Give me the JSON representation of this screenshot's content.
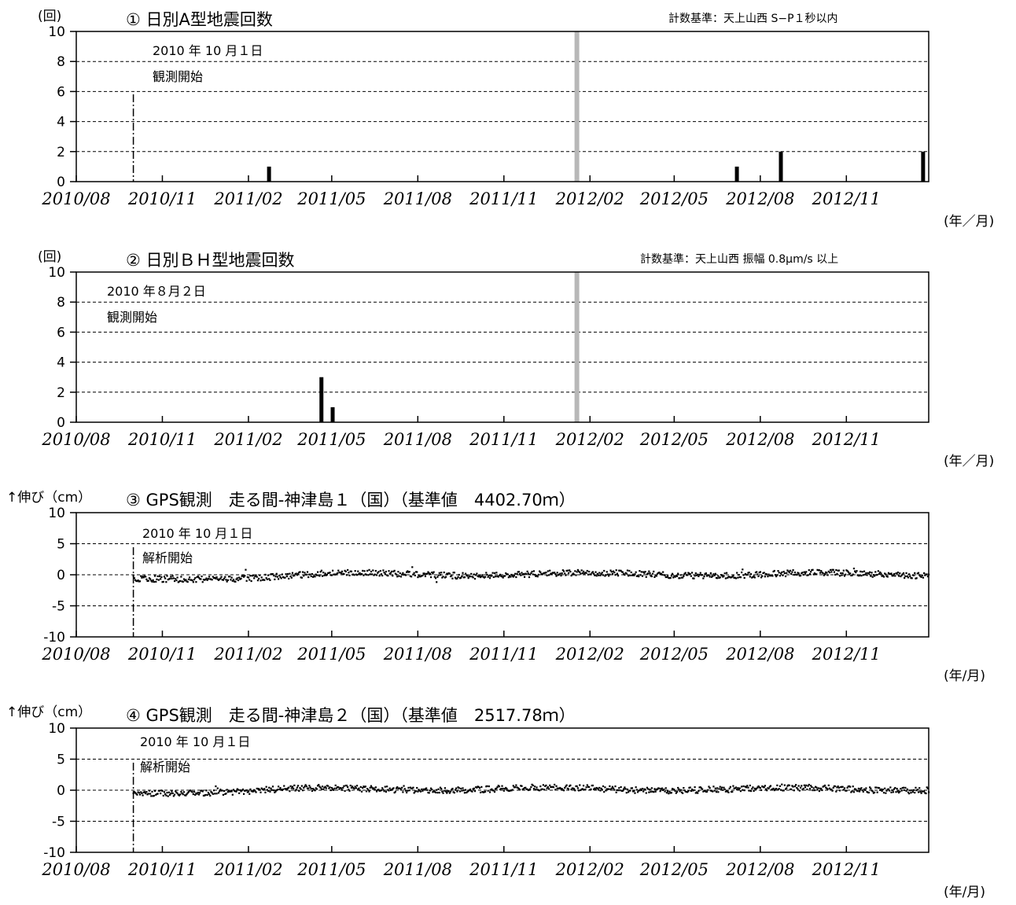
{
  "x_ticks": [
    "2010/08",
    "2010/11",
    "2011/02",
    "2011/05",
    "2011/08",
    "2011/11",
    "2012/02",
    "2012/05",
    "2012/08",
    "2012/11"
  ],
  "chart_data": [
    {
      "type": "bar",
      "title": "① 日別A型地震回数",
      "criterion": "計数基準：天上山西 S−P１秒以内",
      "ylabel": "(回)",
      "xunit": "(年／月)",
      "ylim": [
        0,
        10
      ],
      "yticks": [
        0,
        2,
        4,
        6,
        8,
        10
      ],
      "xlim": [
        "2010-08-01",
        "2013-01-28"
      ],
      "grid": "dashed horizontal",
      "start_line": "2010-10-01",
      "annotation": [
        "2010 年 10 月１日",
        "観測開始"
      ],
      "gap_bar": "2012-01-18",
      "values": [
        {
          "date": "2011-02-23",
          "value": 1
        },
        {
          "date": "2012-07-07",
          "value": 1
        },
        {
          "date": "2012-08-23",
          "value": 2
        },
        {
          "date": "2013-01-22",
          "value": 2
        }
      ]
    },
    {
      "type": "bar",
      "title": "② 日別ＢＨ型地震回数",
      "criterion": "計数基準：天上山西 振幅 0.8μm/s 以上",
      "ylabel": "(回)",
      "xunit": "(年／月)",
      "ylim": [
        0,
        10
      ],
      "yticks": [
        0,
        2,
        4,
        6,
        8,
        10
      ],
      "xlim": [
        "2010-08-01",
        "2013-01-28"
      ],
      "grid": "dashed horizontal",
      "annotation": [
        "2010 年８月２日",
        "観測開始"
      ],
      "gap_bar": "2012-01-18",
      "values": [
        {
          "date": "2011-04-20",
          "value": 3
        },
        {
          "date": "2011-05-02",
          "value": 1
        }
      ]
    },
    {
      "type": "scatter",
      "title": "③ GPS観測　走る間-神津島１（国）（基準値　4402.70ｍ）",
      "ylabel": "↑伸び（cm）",
      "xunit": "(年/月)",
      "ylim": [
        -10,
        10
      ],
      "yticks": [
        -10,
        -5,
        0,
        5,
        10
      ],
      "xlim": [
        "2010-08-01",
        "2013-01-28"
      ],
      "grid": "dashed horizontal",
      "start_line": "2010-10-01",
      "annotation": [
        "2010 年 10 月１日",
        "解析開始"
      ],
      "series_summary": {
        "start": "2010-10-01",
        "end": "2013-01-28",
        "level_start": -0.9,
        "level_end": 0.1,
        "scatter": 0.5
      }
    },
    {
      "type": "scatter",
      "title": "④ GPS観測　走る間-神津島２（国）（基準値　2517.78ｍ）",
      "ylabel": "↑伸び（cm）",
      "xunit": "(年/月)",
      "ylim": [
        -10,
        10
      ],
      "yticks": [
        -10,
        -5,
        0,
        5,
        10
      ],
      "xlim": [
        "2010-08-01",
        "2013-01-28"
      ],
      "grid": "dashed horizontal",
      "start_line": "2010-10-01",
      "annotation": [
        "2010 年 10 月１日",
        "解析開始"
      ],
      "series_summary": {
        "start": "2010-10-01",
        "end": "2013-01-28",
        "level_start": -0.4,
        "level_end": 0.2,
        "scatter": 0.5
      }
    }
  ]
}
